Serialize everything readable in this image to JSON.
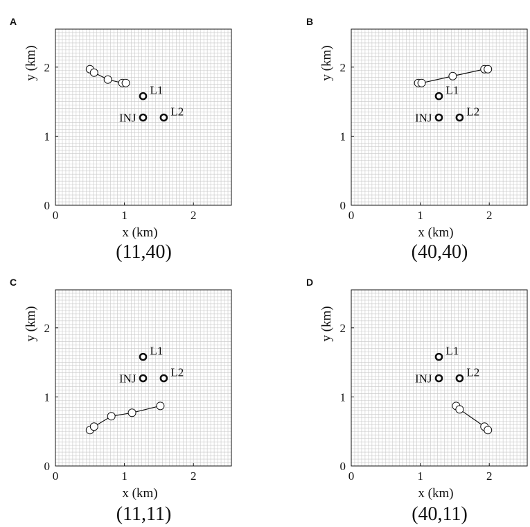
{
  "colors": {
    "background": "#ffffff",
    "grid_fine": "#c8c8c8",
    "axis": "#111111",
    "marker_fill": "#ffffff",
    "marker_edge": "#111111",
    "path_line": "#111111"
  },
  "chart_data": [
    {
      "id": "A",
      "panel_letter": "A",
      "caption": "(11,40)",
      "type": "scatter",
      "title": "",
      "xlabel": "x (km)",
      "ylabel": "y (km)",
      "xlim": [
        0,
        2.55
      ],
      "ylim": [
        0,
        2.55
      ],
      "xticks": [
        0,
        1,
        2
      ],
      "yticks": [
        0,
        1,
        2
      ],
      "grid": true,
      "grid_step": 0.05,
      "wells": [
        {
          "name": "L1",
          "x": 1.27,
          "y": 1.58,
          "label_side": "right"
        },
        {
          "name": "INJ",
          "x": 1.27,
          "y": 1.27,
          "label_side": "left"
        },
        {
          "name": "L2",
          "x": 1.57,
          "y": 1.27,
          "label_side": "right"
        }
      ],
      "path": [
        {
          "x": 0.5,
          "y": 1.97
        },
        {
          "x": 0.56,
          "y": 1.92
        },
        {
          "x": 0.76,
          "y": 1.82
        },
        {
          "x": 0.97,
          "y": 1.77
        },
        {
          "x": 1.02,
          "y": 1.77
        }
      ]
    },
    {
      "id": "B",
      "panel_letter": "B",
      "caption": "(40,40)",
      "type": "scatter",
      "title": "",
      "xlabel": "x (km)",
      "ylabel": "y (km)",
      "xlim": [
        0,
        2.55
      ],
      "ylim": [
        0,
        2.55
      ],
      "xticks": [
        0,
        1,
        2
      ],
      "yticks": [
        0,
        1,
        2
      ],
      "grid": true,
      "grid_step": 0.05,
      "wells": [
        {
          "name": "L1",
          "x": 1.27,
          "y": 1.58,
          "label_side": "right"
        },
        {
          "name": "INJ",
          "x": 1.27,
          "y": 1.27,
          "label_side": "left"
        },
        {
          "name": "L2",
          "x": 1.57,
          "y": 1.27,
          "label_side": "right"
        }
      ],
      "path": [
        {
          "x": 0.97,
          "y": 1.77
        },
        {
          "x": 1.02,
          "y": 1.77
        },
        {
          "x": 1.47,
          "y": 1.87
        },
        {
          "x": 1.93,
          "y": 1.97
        },
        {
          "x": 1.98,
          "y": 1.97
        }
      ]
    },
    {
      "id": "C",
      "panel_letter": "C",
      "caption": "(11,11)",
      "type": "scatter",
      "title": "",
      "xlabel": "x (km)",
      "ylabel": "y (km)",
      "xlim": [
        0,
        2.55
      ],
      "ylim": [
        0,
        2.55
      ],
      "xticks": [
        0,
        1,
        2
      ],
      "yticks": [
        0,
        1,
        2
      ],
      "grid": true,
      "grid_step": 0.05,
      "wells": [
        {
          "name": "L1",
          "x": 1.27,
          "y": 1.58,
          "label_side": "right"
        },
        {
          "name": "INJ",
          "x": 1.27,
          "y": 1.27,
          "label_side": "left"
        },
        {
          "name": "L2",
          "x": 1.57,
          "y": 1.27,
          "label_side": "right"
        }
      ],
      "path": [
        {
          "x": 0.5,
          "y": 0.52
        },
        {
          "x": 0.56,
          "y": 0.57
        },
        {
          "x": 0.81,
          "y": 0.72
        },
        {
          "x": 1.11,
          "y": 0.77
        },
        {
          "x": 1.52,
          "y": 0.87
        }
      ]
    },
    {
      "id": "D",
      "panel_letter": "D",
      "caption": "(40,11)",
      "type": "scatter",
      "title": "",
      "xlabel": "x (km)",
      "ylabel": "y (km)",
      "xlim": [
        0,
        2.55
      ],
      "ylim": [
        0,
        2.55
      ],
      "xticks": [
        0,
        1,
        2
      ],
      "yticks": [
        0,
        1,
        2
      ],
      "grid": true,
      "grid_step": 0.05,
      "wells": [
        {
          "name": "L1",
          "x": 1.27,
          "y": 1.58,
          "label_side": "right"
        },
        {
          "name": "INJ",
          "x": 1.27,
          "y": 1.27,
          "label_side": "left"
        },
        {
          "name": "L2",
          "x": 1.57,
          "y": 1.27,
          "label_side": "right"
        }
      ],
      "path": [
        {
          "x": 1.52,
          "y": 0.87
        },
        {
          "x": 1.57,
          "y": 0.82
        },
        {
          "x": 1.93,
          "y": 0.57
        },
        {
          "x": 1.98,
          "y": 0.52
        }
      ]
    }
  ]
}
